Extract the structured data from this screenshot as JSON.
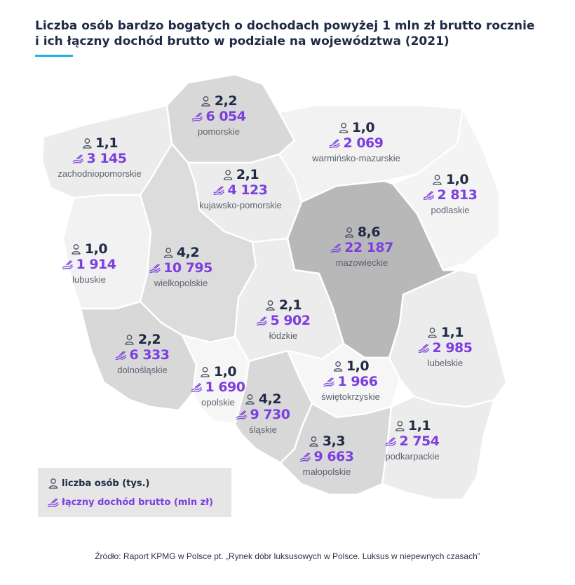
{
  "title": {
    "line1": "Liczba osób bardzo bogatych o dochodach powyżej 1 mln zł brutto rocznie",
    "line2": "i ich łączny dochód brutto w podziale na województwa (2021)"
  },
  "colors": {
    "accent": "#1fb3e8",
    "count": "#1f2a44",
    "income": "#7d3ee0"
  },
  "regions": [
    {
      "id": "pomorskie",
      "name": "pomorskie",
      "count": "2,2",
      "income": "6 054",
      "shade": "#d8d8d8"
    },
    {
      "id": "zachodniopomorskie",
      "name": "zachodniopomorskie",
      "count": "1,1",
      "income": "3 145",
      "shade": "#ececec"
    },
    {
      "id": "warminsko-mazurskie",
      "name": "warmińsko-mazurskie",
      "count": "1,0",
      "income": "2 069",
      "shade": "#f2f2f2"
    },
    {
      "id": "kujawsko-pomorskie",
      "name": "kujawsko-pomorskie",
      "count": "2,1",
      "income": "4 123",
      "shade": "#ececec"
    },
    {
      "id": "podlaskie",
      "name": "podlaskie",
      "count": "1,0",
      "income": "2 813",
      "shade": "#f4f4f4"
    },
    {
      "id": "lubuskie",
      "name": "lubuskie",
      "count": "1,0",
      "income": "1 914",
      "shade": "#f2f2f2"
    },
    {
      "id": "wielkopolskie",
      "name": "wielkopolskie",
      "count": "4,2",
      "income": "10 795",
      "shade": "#dcdcdc"
    },
    {
      "id": "mazowieckie",
      "name": "mazowieckie",
      "count": "8,6",
      "income": "22 187",
      "shade": "#b8b8b8"
    },
    {
      "id": "lodzkie",
      "name": "łódzkie",
      "count": "2,1",
      "income": "5 902",
      "shade": "#ececec"
    },
    {
      "id": "lubelskie",
      "name": "lubelskie",
      "count": "1,1",
      "income": "2 985",
      "shade": "#ececec"
    },
    {
      "id": "dolnoslaskie",
      "name": "dolnośląskie",
      "count": "2,2",
      "income": "6 333",
      "shade": "#d8d8d8"
    },
    {
      "id": "opolskie",
      "name": "opolskie",
      "count": "1,0",
      "income": "1 690",
      "shade": "#f6f6f6"
    },
    {
      "id": "swietokrzyskie",
      "name": "świętokrzyskie",
      "count": "1,0",
      "income": "1 966",
      "shade": "#f6f6f6"
    },
    {
      "id": "slaskie",
      "name": "śląskie",
      "count": "4,2",
      "income": "9 730",
      "shade": "#d8d8d8"
    },
    {
      "id": "malopolskie",
      "name": "małopolskie",
      "count": "3,3",
      "income": "9 663",
      "shade": "#d8d8d8"
    },
    {
      "id": "podkarpackie",
      "name": "podkarpackie",
      "count": "1,1",
      "income": "2 754",
      "shade": "#ececec"
    }
  ],
  "legend": {
    "count_label": "liczba osób (tys.)",
    "income_label": "łączny dochód brutto (mln zł)",
    "person_icon": "person-icon",
    "money_icon": "money-hand-icon"
  },
  "source": "Źródło: Raport KPMG w Polsce pt. „Rynek dóbr luksusowych w Polsce. Luksus w niepewnych czasach”"
}
